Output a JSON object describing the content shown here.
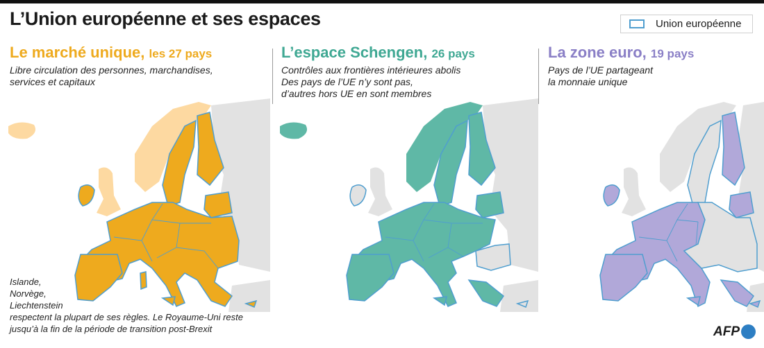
{
  "title": "L’Union européenne et ses espaces",
  "legend": {
    "label": "Union européenne",
    "border_color": "#4f9ecf"
  },
  "panels": [
    {
      "title": "Le marché unique,",
      "count": "les 27 pays",
      "desc": "Libre circulation des personnes, marchandises,\nservices et capitaux",
      "color": "#eeaa1e",
      "light_color": "#fdd9a1",
      "title_color": "#eeaa1e"
    },
    {
      "title": "L’espace Schengen,",
      "count": "26 pays",
      "desc": "Contrôles aux frontières intérieures abolis\nDes pays de l’UE n’y sont pas,\nd’autres hors UE en sont membres",
      "color": "#5fb8a6",
      "light_color": "#e2e2e2",
      "title_color": "#3fa893"
    },
    {
      "title": "La zone euro,",
      "count": "19 pays",
      "desc": "Pays de l’UE partageant\nla monnaie unique",
      "color": "#b1a8d9",
      "light_color": "#e2e2e2",
      "title_color": "#8a7fc6"
    }
  ],
  "footnote": "Islande,\nNorvège,\nLiechtenstein",
  "footnote2": "respectent la plupart de ses règles. Le Royaume-Uni reste\njusqu’à la fin de la période de transition post-Brexit",
  "credit": "AFP",
  "colors": {
    "border": "#4f9ecf",
    "grey": "#e2e2e2",
    "grey_dark": "#d0d0d0"
  }
}
